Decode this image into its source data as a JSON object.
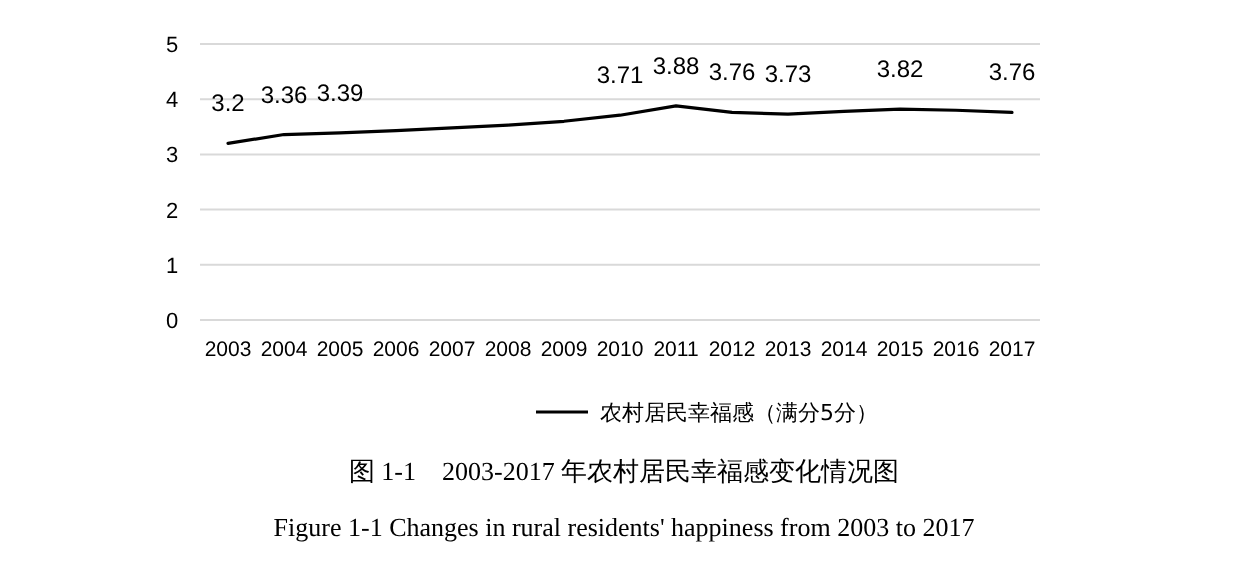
{
  "chart_data": {
    "type": "line",
    "title": "图 1-1　2003-2017 年农村居民幸福感变化情况图",
    "subtitle": "Figure 1-1    Changes in rural residents' happiness from 2003 to 2017",
    "categories": [
      "2003",
      "2004",
      "2005",
      "2006",
      "2007",
      "2008",
      "2009",
      "2010",
      "2011",
      "2012",
      "2013",
      "2014",
      "2015",
      "2016",
      "2017"
    ],
    "series": [
      {
        "name": "农村居民幸福感（满分5分）",
        "color": "#000000",
        "values": [
          3.2,
          3.36,
          3.39,
          3.43,
          3.48,
          3.53,
          3.6,
          3.71,
          3.88,
          3.76,
          3.73,
          3.78,
          3.82,
          3.8,
          3.76
        ],
        "value_labels": [
          "3.2",
          "3.36",
          "3.39",
          null,
          null,
          null,
          null,
          "3.71",
          "3.88",
          "3.76",
          "3.73",
          null,
          "3.82",
          null,
          "3.76"
        ]
      }
    ],
    "ylim": [
      0,
      5
    ],
    "yticks": [
      0,
      1,
      2,
      3,
      4,
      5
    ],
    "grid": "y",
    "legend": "bottom",
    "line_style": "solid"
  }
}
